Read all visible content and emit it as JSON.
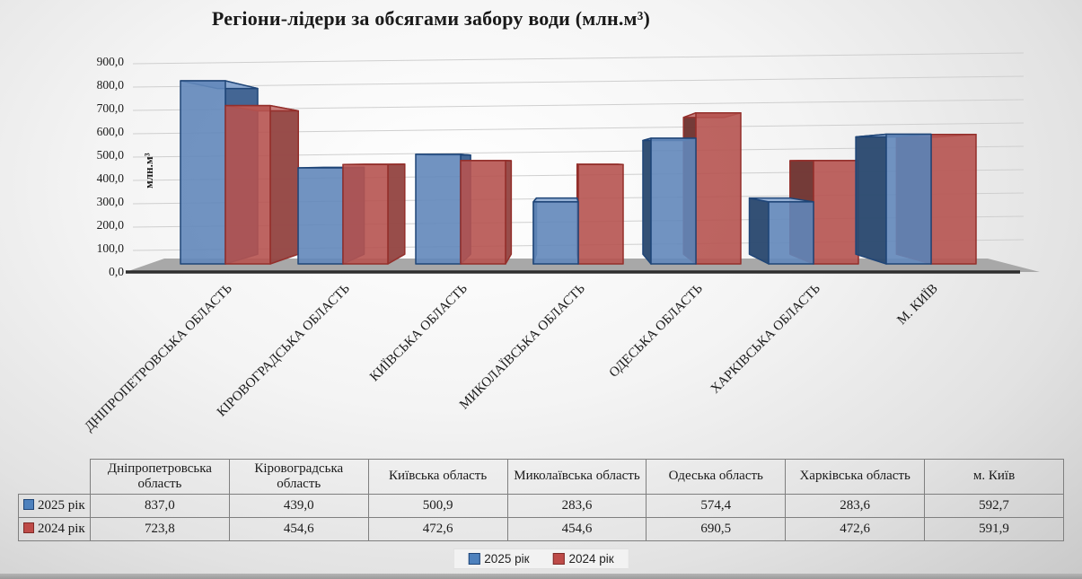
{
  "title": "Регіони-лідери за обсягами забору води (млн.м³)",
  "chart_data": {
    "type": "bar",
    "style": "3d-clustered-column",
    "title": "Регіони-лідери за обсягами забору води (млн.м³)",
    "ylabel": "млн.м³",
    "xlabel": "",
    "ylim": [
      0,
      900
    ],
    "ytick_step": 100,
    "ytick_labels": [
      "0,0",
      "100,0",
      "200,0",
      "300,0",
      "400,0",
      "500,0",
      "600,0",
      "700,0",
      "800,0",
      "900,0"
    ],
    "grid": true,
    "legend_position": "bottom",
    "categories": [
      "Дніпропетровська область",
      "Кіровоградська область",
      "Київська область",
      "Миколаївська область",
      "Одеська область",
      "Харківська область",
      "м. Київ"
    ],
    "series": [
      {
        "name": "2025 рік",
        "values": [
          837.0,
          439.0,
          500.9,
          283.6,
          574.4,
          283.6,
          592.7
        ],
        "palette": {
          "front": "#6287BA",
          "top": "#8FACD3",
          "side_right": "#3E6191",
          "side_left": "#2C4A71",
          "stroke": "#1F4577"
        }
      },
      {
        "name": "2024 рік",
        "values": [
          723.8,
          454.6,
          472.6,
          454.6,
          690.5,
          472.6,
          591.9
        ],
        "palette": {
          "front": "#B65350",
          "top": "#CA807D",
          "side_right": "#954744",
          "side_left": "#6F3532",
          "stroke": "#932F2B"
        }
      }
    ]
  },
  "table": {
    "corner": "",
    "columns": [
      "Дніпропетровська область",
      "Кіровоградська область",
      "Київська область",
      "Миколаївська область",
      "Одеська область",
      "Харківська область",
      "м. Київ"
    ],
    "rows": [
      {
        "label": "2025 рік",
        "values": [
          "837,0",
          "439,0",
          "500,9",
          "283,6",
          "574,4",
          "283,6",
          "592,7"
        ]
      },
      {
        "label": "2024 рік",
        "values": [
          "723,8",
          "454,6",
          "472,6",
          "454,6",
          "690,5",
          "472,6",
          "591,9"
        ]
      }
    ]
  },
  "legend": {
    "items": [
      {
        "label": "2025 рік",
        "color": "#4E81BD",
        "border": "#1F4577"
      },
      {
        "label": "2024 рік",
        "color": "#BE4B48",
        "border": "#7F2B28"
      }
    ]
  },
  "colors": {
    "gridline": "#cfcfcf",
    "floor": "#a8a8a8",
    "baseline": "#2e2e2e",
    "text": "#1a1a1a"
  }
}
